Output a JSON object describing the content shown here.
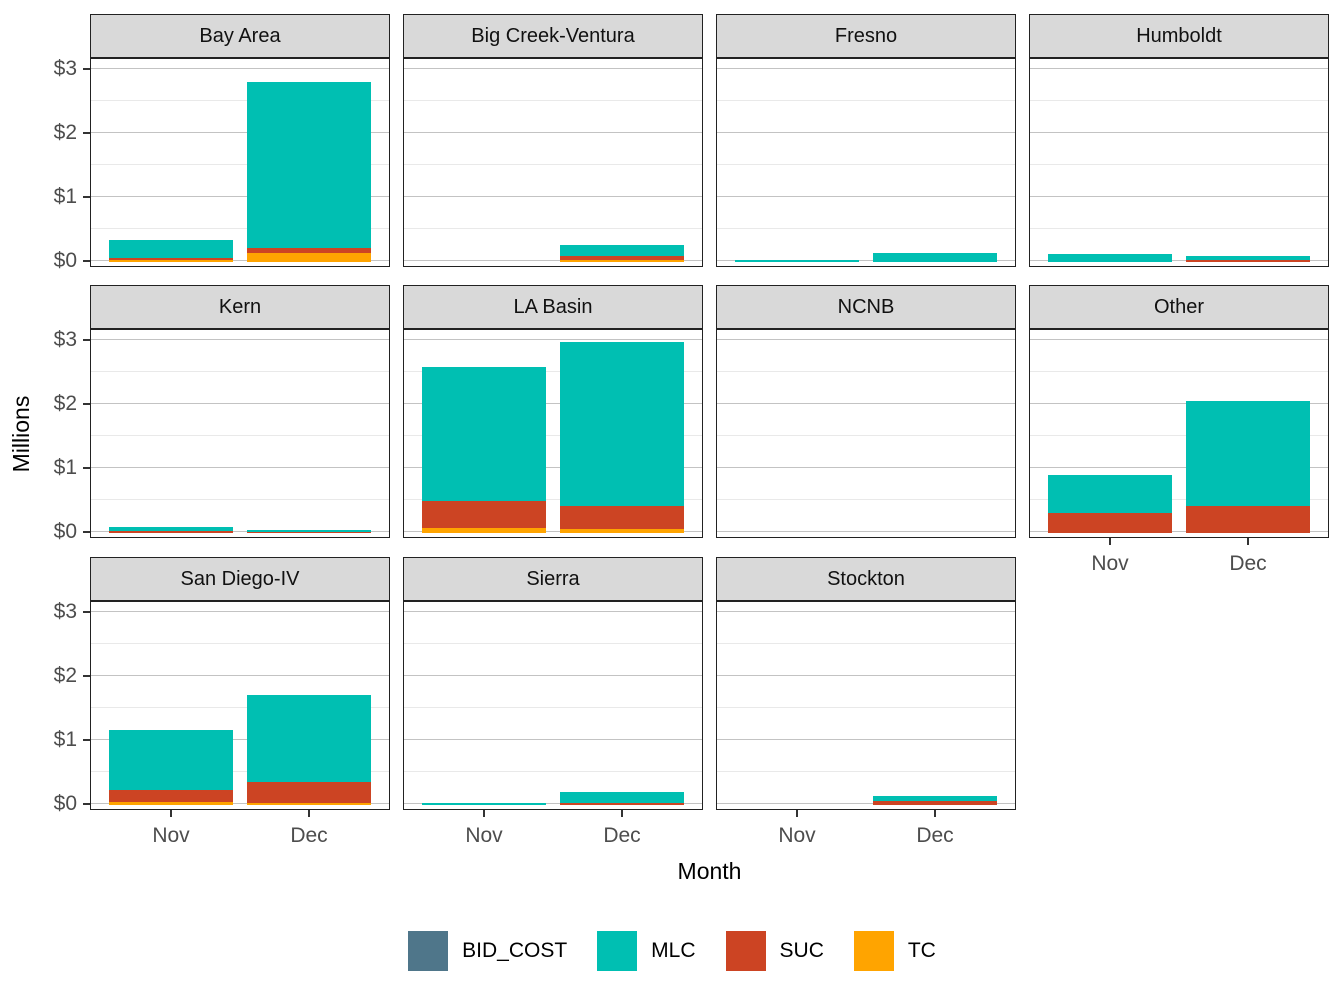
{
  "chart_data": {
    "type": "bar",
    "stacked": true,
    "facet_variable": "region",
    "xlabel": "Month",
    "ylabel": "Millions",
    "categories": [
      "Nov",
      "Dec"
    ],
    "y_tick_labels": [
      "$0",
      "$1",
      "$2",
      "$3"
    ],
    "y_tick_values": [
      0,
      1,
      2,
      3
    ],
    "y_minor_gridlines": [
      0.5,
      1.5,
      2.5
    ],
    "ylim": [
      0,
      3.17
    ],
    "unit": "millions of dollars",
    "legend_position": "bottom",
    "series_names": [
      "BID_COST",
      "MLC",
      "SUC",
      "TC"
    ],
    "stack_order_bottom_to_top": [
      "TC",
      "SUC",
      "MLC",
      "BID_COST"
    ],
    "colors": {
      "BID_COST": "#4F768A",
      "MLC": "#00BFB2",
      "SUC": "#CC4423",
      "TC": "#FFA400"
    },
    "facets": [
      {
        "label": "Bay Area",
        "series": {
          "BID_COST": [
            0,
            0
          ],
          "MLC": [
            0.28,
            2.59
          ],
          "SUC": [
            0.03,
            0.07
          ],
          "TC": [
            0.02,
            0.14
          ]
        }
      },
      {
        "label": "Big Creek-Ventura",
        "series": {
          "BID_COST": [
            0,
            0
          ],
          "MLC": [
            0,
            0.17
          ],
          "SUC": [
            0,
            0.06
          ],
          "TC": [
            0,
            0.03
          ]
        }
      },
      {
        "label": "Fresno",
        "series": {
          "BID_COST": [
            0,
            0
          ],
          "MLC": [
            0.03,
            0.14
          ],
          "SUC": [
            0,
            0
          ],
          "TC": [
            0,
            0
          ]
        }
      },
      {
        "label": "Humboldt",
        "series": {
          "BID_COST": [
            0,
            0
          ],
          "MLC": [
            0.12,
            0.07
          ],
          "SUC": [
            0,
            0.02
          ],
          "TC": [
            0,
            0
          ]
        }
      },
      {
        "label": "Kern",
        "series": {
          "BID_COST": [
            0,
            0
          ],
          "MLC": [
            0.06,
            0.03
          ],
          "SUC": [
            0.03,
            0.01
          ],
          "TC": [
            0,
            0
          ]
        }
      },
      {
        "label": "LA Basin",
        "series": {
          "BID_COST": [
            0,
            0
          ],
          "MLC": [
            2.08,
            2.56
          ],
          "SUC": [
            0.43,
            0.37
          ],
          "TC": [
            0.07,
            0.05
          ]
        }
      },
      {
        "label": "NCNB",
        "series": {
          "BID_COST": [
            0,
            0
          ],
          "MLC": [
            0,
            0
          ],
          "SUC": [
            0,
            0
          ],
          "TC": [
            0,
            0
          ]
        }
      },
      {
        "label": "Other",
        "series": {
          "BID_COST": [
            0,
            0
          ],
          "MLC": [
            0.59,
            1.64
          ],
          "SUC": [
            0.31,
            0.41
          ],
          "TC": [
            0,
            0
          ]
        }
      },
      {
        "label": "San Diego-IV",
        "series": {
          "BID_COST": [
            0,
            0
          ],
          "MLC": [
            0.93,
            1.35
          ],
          "SUC": [
            0.19,
            0.33
          ],
          "TC": [
            0.04,
            0.03
          ]
        }
      },
      {
        "label": "Sierra",
        "series": {
          "BID_COST": [
            0,
            0
          ],
          "MLC": [
            0.03,
            0.18
          ],
          "SUC": [
            0,
            0.02
          ],
          "TC": [
            0,
            0
          ]
        }
      },
      {
        "label": "Stockton",
        "series": {
          "BID_COST": [
            0,
            0
          ],
          "MLC": [
            0,
            0.08
          ],
          "SUC": [
            0,
            0.06
          ],
          "TC": [
            0,
            0
          ]
        }
      }
    ],
    "legend": [
      {
        "label": "BID_COST"
      },
      {
        "label": "MLC"
      },
      {
        "label": "SUC"
      },
      {
        "label": "TC"
      }
    ]
  }
}
